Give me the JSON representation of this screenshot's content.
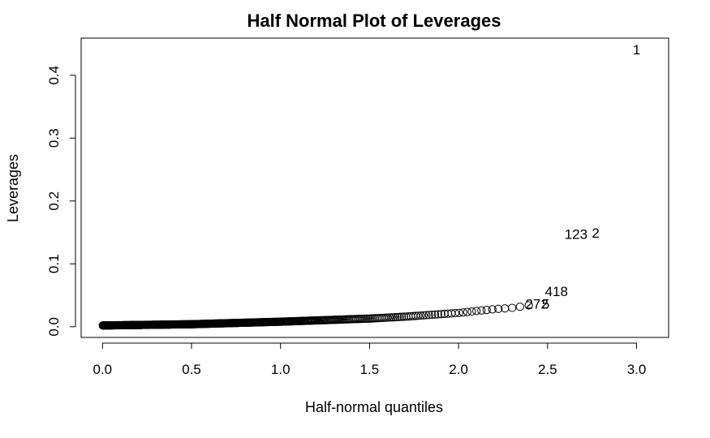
{
  "chart_data": {
    "type": "scatter",
    "title": "Half Normal Plot of Leverages",
    "xlabel": "Half-normal quantiles",
    "ylabel": "Leverages",
    "xlim": [
      -0.12,
      3.18
    ],
    "ylim": [
      -0.017,
      0.459
    ],
    "xticks": [
      0.0,
      0.5,
      1.0,
      1.5,
      2.0,
      2.5,
      3.0
    ],
    "xtick_labels": [
      "0.0",
      "0.5",
      "1.0",
      "1.5",
      "2.0",
      "2.5",
      "3.0"
    ],
    "yticks": [
      0.0,
      0.1,
      0.2,
      0.3,
      0.4
    ],
    "ytick_labels": [
      "0.0",
      "0.1",
      "0.2",
      "0.3",
      "0.4"
    ],
    "marker": "open-circle",
    "n_points": 420,
    "point_y_at_quantiles": [
      {
        "x": 0.0,
        "y": 0.002
      },
      {
        "x": 0.5,
        "y": 0.004
      },
      {
        "x": 1.0,
        "y": 0.008
      },
      {
        "x": 1.5,
        "y": 0.013
      },
      {
        "x": 1.7,
        "y": 0.016
      },
      {
        "x": 1.9,
        "y": 0.02
      },
      {
        "x": 2.0,
        "y": 0.022
      },
      {
        "x": 2.1,
        "y": 0.025
      },
      {
        "x": 2.2,
        "y": 0.028
      },
      {
        "x": 2.3,
        "y": 0.03
      },
      {
        "x": 2.35,
        "y": 0.032
      },
      {
        "x": 2.39,
        "y": 0.034
      }
    ],
    "labeled_points": [
      {
        "label": "1",
        "x": 3.0,
        "y": 0.44
      },
      {
        "label": "2",
        "x": 2.77,
        "y": 0.149
      },
      {
        "label": "123",
        "x": 2.66,
        "y": 0.147
      },
      {
        "label": "418",
        "x": 2.55,
        "y": 0.056
      },
      {
        "label": "5",
        "x": 2.49,
        "y": 0.036
      },
      {
        "label": "272",
        "x": 2.44,
        "y": 0.036
      }
    ],
    "grid": false,
    "legend": "none"
  }
}
